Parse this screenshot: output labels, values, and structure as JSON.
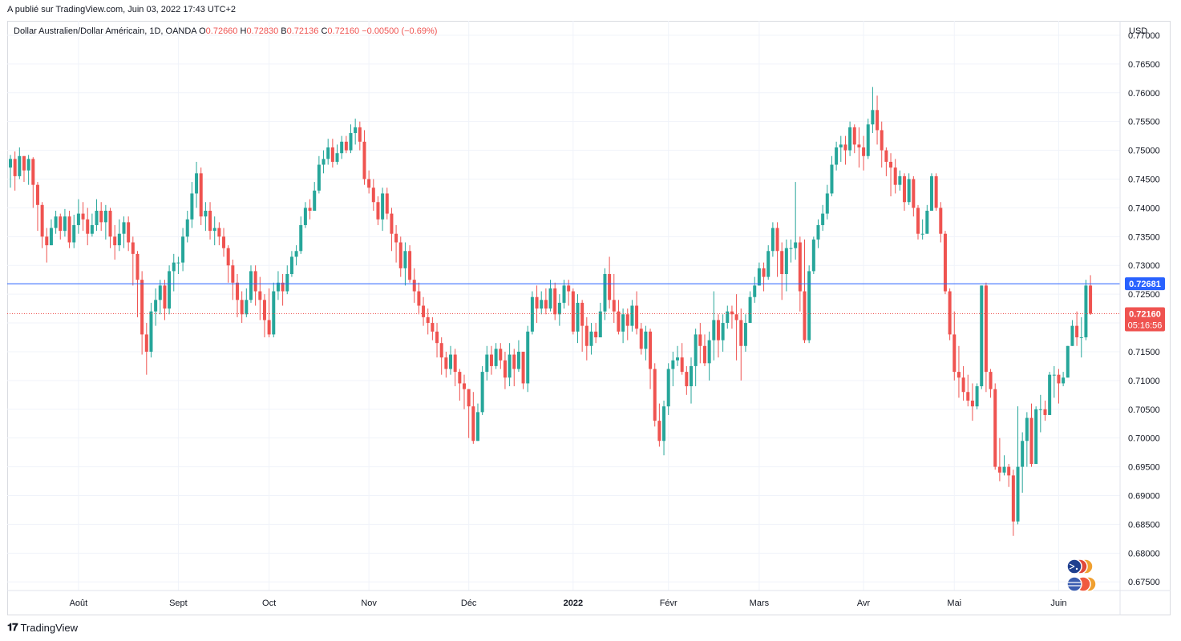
{
  "header": {
    "published": "A publié sur TradingView.com, Juin 03, 2022 17:43 UTC+2"
  },
  "legend": {
    "symbol": "Dollar Australien/Dollar Américain, 1D, OANDA",
    "open_label": "O",
    "open_value": "0.72660",
    "high_label": "H",
    "high_value": "0.72830",
    "low_label": "B",
    "low_value": "0.72136",
    "close_label": "C",
    "close_value": "0.72160",
    "change": "−0.00500 (−0.69%)"
  },
  "price_axis": {
    "currency": "USD",
    "last_price_label": "0.72160",
    "countdown_label": "05:16:56",
    "line_price_label": "0.72681"
  },
  "footer": {
    "brand": "TradingView"
  },
  "colors": {
    "up": "#26a69a",
    "down": "#ef5350",
    "line": "#2962ff",
    "grid": "#f0f3fa",
    "text": "#131722"
  },
  "chart_data": {
    "type": "candlestick",
    "title": "Dollar Australien/Dollar Américain, 1D, OANDA",
    "ylabel": "USD",
    "ylim": [
      0.6735,
      0.7725
    ],
    "y_ticks": [
      "0.77000",
      "0.76500",
      "0.76000",
      "0.75500",
      "0.75000",
      "0.74500",
      "0.74000",
      "0.73500",
      "0.73000",
      "0.72500",
      "0.72000",
      "0.71500",
      "0.71000",
      "0.70500",
      "0.70000",
      "0.69500",
      "0.69000",
      "0.68500",
      "0.68000",
      "0.67500"
    ],
    "x_ticks": [
      {
        "label": "Août",
        "index": 15,
        "bold": false
      },
      {
        "label": "Sept",
        "index": 37,
        "bold": false
      },
      {
        "label": "Oct",
        "index": 57,
        "bold": false
      },
      {
        "label": "Nov",
        "index": 79,
        "bold": false
      },
      {
        "label": "Déc",
        "index": 101,
        "bold": false
      },
      {
        "label": "2022",
        "index": 124,
        "bold": true
      },
      {
        "label": "Févr",
        "index": 145,
        "bold": false
      },
      {
        "label": "Mars",
        "index": 165,
        "bold": false
      },
      {
        "label": "Avr",
        "index": 188,
        "bold": false
      },
      {
        "label": "Mai",
        "index": 208,
        "bold": false
      },
      {
        "label": "Juin",
        "index": 231,
        "bold": false
      }
    ],
    "horizontal_line": 0.72681,
    "last_price": 0.7216,
    "closes": [
      0.7485,
      0.7455,
      0.749,
      0.7465,
      0.7485,
      0.744,
      0.7405,
      0.735,
      0.7335,
      0.7365,
      0.7385,
      0.736,
      0.7385,
      0.734,
      0.737,
      0.739,
      0.738,
      0.7355,
      0.737,
      0.7395,
      0.7375,
      0.7395,
      0.735,
      0.7335,
      0.7355,
      0.7375,
      0.734,
      0.732,
      0.7275,
      0.718,
      0.715,
      0.722,
      0.724,
      0.7265,
      0.7225,
      0.729,
      0.7305,
      0.7305,
      0.735,
      0.738,
      0.7425,
      0.746,
      0.7385,
      0.7395,
      0.736,
      0.7365,
      0.735,
      0.733,
      0.73,
      0.727,
      0.724,
      0.7215,
      0.724,
      0.729,
      0.7255,
      0.724,
      0.7205,
      0.718,
      0.7255,
      0.727,
      0.7255,
      0.7285,
      0.7315,
      0.7325,
      0.737,
      0.74,
      0.7395,
      0.743,
      0.7475,
      0.7485,
      0.7505,
      0.748,
      0.7495,
      0.7515,
      0.75,
      0.753,
      0.754,
      0.7515,
      0.745,
      0.7435,
      0.741,
      0.738,
      0.7425,
      0.739,
      0.7355,
      0.734,
      0.7295,
      0.7325,
      0.7275,
      0.7255,
      0.723,
      0.721,
      0.72,
      0.7185,
      0.7165,
      0.714,
      0.712,
      0.7145,
      0.7115,
      0.7095,
      0.7085,
      0.7055,
      0.6995,
      0.7045,
      0.7115,
      0.7145,
      0.7125,
      0.7155,
      0.7135,
      0.7105,
      0.7145,
      0.712,
      0.715,
      0.7095,
      0.7185,
      0.7245,
      0.7225,
      0.724,
      0.7225,
      0.726,
      0.7215,
      0.7235,
      0.7265,
      0.7255,
      0.7185,
      0.7235,
      0.7195,
      0.716,
      0.7185,
      0.7175,
      0.722,
      0.7285,
      0.724,
      0.722,
      0.7185,
      0.7215,
      0.7195,
      0.723,
      0.719,
      0.7155,
      0.7185,
      0.712,
      0.703,
      0.6995,
      0.7055,
      0.712,
      0.7135,
      0.714,
      0.7115,
      0.709,
      0.7125,
      0.718,
      0.716,
      0.713,
      0.717,
      0.7205,
      0.717,
      0.72,
      0.722,
      0.7215,
      0.7205,
      0.716,
      0.72,
      0.7245,
      0.7265,
      0.7295,
      0.728,
      0.7325,
      0.7365,
      0.7325,
      0.7285,
      0.733,
      0.733,
      0.734,
      0.7255,
      0.717,
      0.729,
      0.7345,
      0.737,
      0.739,
      0.7425,
      0.7475,
      0.7505,
      0.751,
      0.75,
      0.754,
      0.751,
      0.7505,
      0.749,
      0.7545,
      0.757,
      0.7535,
      0.75,
      0.748,
      0.747,
      0.744,
      0.7455,
      0.741,
      0.745,
      0.74,
      0.7355,
      0.7355,
      0.7395,
      0.7455,
      0.74,
      0.7355,
      0.7255,
      0.718,
      0.7115,
      0.7105,
      0.708,
      0.7065,
      0.7055,
      0.709,
      0.7265,
      0.7115,
      0.7085,
      0.695,
      0.694,
      0.695,
      0.6935,
      0.6855,
      0.695,
      0.6995,
      0.7035,
      0.6955,
      0.705,
      0.705,
      0.704,
      0.711,
      0.711,
      0.7095,
      0.7105,
      0.716,
      0.7195,
      0.7175,
      0.7175,
      0.7265,
      0.7216
    ],
    "highs": [
      0.7492,
      0.7498,
      0.7505,
      0.749,
      0.7492,
      0.7488,
      0.7445,
      0.741,
      0.7365,
      0.738,
      0.7395,
      0.739,
      0.7398,
      0.7395,
      0.7388,
      0.7415,
      0.741,
      0.74,
      0.739,
      0.7415,
      0.741,
      0.7405,
      0.74,
      0.737,
      0.738,
      0.7385,
      0.7385,
      0.735,
      0.7325,
      0.729,
      0.72,
      0.7235,
      0.726,
      0.7275,
      0.7275,
      0.73,
      0.732,
      0.7315,
      0.7365,
      0.7395,
      0.7445,
      0.748,
      0.747,
      0.741,
      0.741,
      0.7385,
      0.7375,
      0.7365,
      0.7335,
      0.731,
      0.7285,
      0.7255,
      0.726,
      0.73,
      0.73,
      0.728,
      0.725,
      0.726,
      0.727,
      0.729,
      0.7285,
      0.73,
      0.7325,
      0.7335,
      0.7385,
      0.741,
      0.7415,
      0.7445,
      0.749,
      0.75,
      0.752,
      0.752,
      0.751,
      0.7525,
      0.7525,
      0.7545,
      0.7555,
      0.755,
      0.7535,
      0.7465,
      0.745,
      0.742,
      0.7435,
      0.7435,
      0.74,
      0.737,
      0.735,
      0.734,
      0.7335,
      0.7295,
      0.727,
      0.7245,
      0.7225,
      0.721,
      0.72,
      0.7175,
      0.715,
      0.716,
      0.7155,
      0.712,
      0.711,
      0.7085,
      0.708,
      0.706,
      0.7125,
      0.716,
      0.716,
      0.7165,
      0.7165,
      0.715,
      0.7165,
      0.7155,
      0.717,
      0.715,
      0.7195,
      0.7255,
      0.7265,
      0.7255,
      0.726,
      0.7275,
      0.727,
      0.725,
      0.7275,
      0.7275,
      0.726,
      0.725,
      0.724,
      0.721,
      0.72,
      0.72,
      0.7235,
      0.7295,
      0.7315,
      0.7285,
      0.724,
      0.7225,
      0.7225,
      0.724,
      0.7255,
      0.72,
      0.7195,
      0.719,
      0.713,
      0.706,
      0.7065,
      0.713,
      0.715,
      0.716,
      0.7165,
      0.7125,
      0.714,
      0.719,
      0.72,
      0.718,
      0.7185,
      0.7255,
      0.7215,
      0.7215,
      0.723,
      0.723,
      0.725,
      0.7225,
      0.7215,
      0.7255,
      0.728,
      0.7305,
      0.7305,
      0.7335,
      0.7375,
      0.7375,
      0.734,
      0.7345,
      0.7345,
      0.7445,
      0.735,
      0.7345,
      0.73,
      0.735,
      0.738,
      0.7405,
      0.744,
      0.749,
      0.7515,
      0.7525,
      0.7525,
      0.755,
      0.7545,
      0.754,
      0.7525,
      0.7555,
      0.761,
      0.7595,
      0.755,
      0.7505,
      0.7495,
      0.7485,
      0.7465,
      0.746,
      0.746,
      0.7455,
      0.7405,
      0.738,
      0.7405,
      0.746,
      0.746,
      0.741,
      0.736,
      0.726,
      0.722,
      0.716,
      0.7125,
      0.711,
      0.7095,
      0.7095,
      0.7265,
      0.727,
      0.712,
      0.7095,
      0.7,
      0.697,
      0.6955,
      0.6945,
      0.7055,
      0.701,
      0.7045,
      0.706,
      0.7055,
      0.7075,
      0.7065,
      0.7115,
      0.7125,
      0.712,
      0.7115,
      0.716,
      0.7205,
      0.722,
      0.721,
      0.7275,
      0.7283
    ],
    "lows": [
      0.7435,
      0.743,
      0.745,
      0.7445,
      0.744,
      0.74,
      0.736,
      0.733,
      0.7305,
      0.7335,
      0.7355,
      0.7345,
      0.735,
      0.733,
      0.733,
      0.7355,
      0.736,
      0.7335,
      0.735,
      0.736,
      0.736,
      0.7345,
      0.733,
      0.731,
      0.7325,
      0.733,
      0.7325,
      0.7265,
      0.721,
      0.7145,
      0.711,
      0.714,
      0.7195,
      0.7215,
      0.7205,
      0.7215,
      0.7255,
      0.7285,
      0.729,
      0.734,
      0.7365,
      0.74,
      0.737,
      0.736,
      0.7345,
      0.7335,
      0.7335,
      0.7315,
      0.727,
      0.724,
      0.721,
      0.72,
      0.721,
      0.7235,
      0.723,
      0.7205,
      0.7175,
      0.7175,
      0.7175,
      0.724,
      0.723,
      0.725,
      0.728,
      0.73,
      0.732,
      0.7365,
      0.738,
      0.7395,
      0.7425,
      0.746,
      0.7475,
      0.747,
      0.7475,
      0.7485,
      0.7495,
      0.7495,
      0.751,
      0.75,
      0.744,
      0.7425,
      0.7395,
      0.737,
      0.736,
      0.738,
      0.7325,
      0.7305,
      0.728,
      0.7265,
      0.727,
      0.7235,
      0.7215,
      0.7195,
      0.718,
      0.717,
      0.714,
      0.711,
      0.7105,
      0.711,
      0.709,
      0.7065,
      0.705,
      0.7,
      0.699,
      0.6995,
      0.704,
      0.71,
      0.711,
      0.712,
      0.712,
      0.7085,
      0.709,
      0.709,
      0.7115,
      0.7085,
      0.708,
      0.718,
      0.72,
      0.7215,
      0.7215,
      0.722,
      0.7205,
      0.7195,
      0.7225,
      0.723,
      0.718,
      0.7165,
      0.715,
      0.7135,
      0.7145,
      0.7165,
      0.7175,
      0.7205,
      0.7225,
      0.72,
      0.718,
      0.7165,
      0.717,
      0.7185,
      0.718,
      0.7145,
      0.7135,
      0.7085,
      0.702,
      0.6985,
      0.697,
      0.704,
      0.709,
      0.7125,
      0.711,
      0.7075,
      0.706,
      0.709,
      0.713,
      0.7125,
      0.71,
      0.7135,
      0.714,
      0.715,
      0.719,
      0.719,
      0.7135,
      0.71,
      0.715,
      0.72,
      0.7235,
      0.7265,
      0.7255,
      0.7275,
      0.7315,
      0.728,
      0.724,
      0.7255,
      0.7305,
      0.731,
      0.722,
      0.7165,
      0.7165,
      0.7285,
      0.733,
      0.736,
      0.738,
      0.742,
      0.7465,
      0.748,
      0.7475,
      0.749,
      0.7495,
      0.747,
      0.7465,
      0.7485,
      0.753,
      0.751,
      0.747,
      0.7455,
      0.742,
      0.7425,
      0.743,
      0.7395,
      0.7405,
      0.7385,
      0.7345,
      0.7345,
      0.7355,
      0.74,
      0.7395,
      0.734,
      0.725,
      0.717,
      0.71,
      0.707,
      0.7065,
      0.7055,
      0.703,
      0.705,
      0.7085,
      0.708,
      0.707,
      0.6945,
      0.6925,
      0.6935,
      0.6915,
      0.683,
      0.685,
      0.6905,
      0.695,
      0.695,
      0.699,
      0.701,
      0.703,
      0.7045,
      0.707,
      0.706,
      0.709,
      0.7125,
      0.716,
      0.716,
      0.714,
      0.717,
      0.7214
    ]
  }
}
